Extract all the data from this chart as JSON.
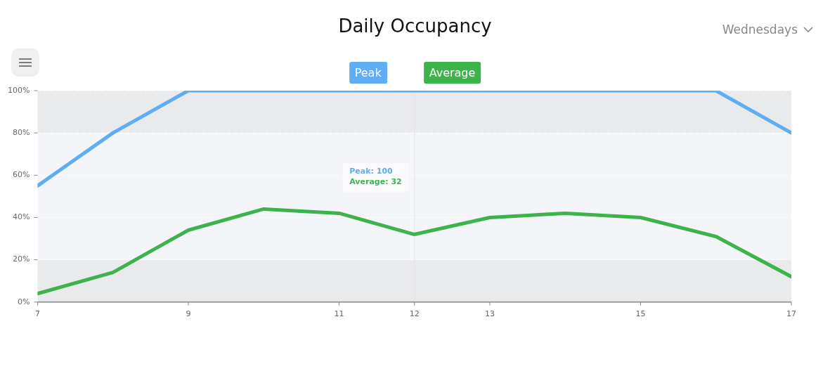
{
  "chart_data": {
    "type": "line",
    "title": "Daily Occupancy",
    "subtitle": "Wednesdays",
    "x": [
      7,
      8,
      9,
      10,
      11,
      12,
      13,
      14,
      15,
      16,
      17
    ],
    "series": [
      {
        "name": "Peak",
        "color": "#5eadf5",
        "values": [
          55,
          80,
          100,
          100,
          100,
          100,
          100,
          100,
          100,
          100,
          80
        ]
      },
      {
        "name": "Average",
        "color": "#3cb44b",
        "values": [
          4,
          14,
          34,
          44,
          42,
          32,
          40,
          42,
          40,
          31,
          12
        ]
      }
    ],
    "xlim": [
      7,
      17
    ],
    "xticks": [
      7,
      9,
      11,
      12,
      13,
      15,
      17
    ],
    "ylim": [
      0,
      100
    ],
    "yticks": [
      {
        "value": 0,
        "label": "0%"
      },
      {
        "value": 20,
        "label": "20%"
      },
      {
        "value": 40,
        "label": "40%"
      },
      {
        "value": 60,
        "label": "60%"
      },
      {
        "value": 80,
        "label": "80%"
      },
      {
        "value": 100,
        "label": "100%"
      }
    ],
    "bands": [
      {
        "axis": "y",
        "from": 0,
        "to": 20,
        "color": "#e9eaec"
      },
      {
        "axis": "y",
        "from": 20,
        "to": 80,
        "color": "#f4f5f9"
      },
      {
        "axis": "y",
        "from": 80,
        "to": 100,
        "color": "#e9eaec"
      }
    ],
    "ref_lines": [
      {
        "axis": "x",
        "value": 12,
        "color": "#e4e4e4"
      }
    ],
    "annotations": [
      "Peak: 100",
      "Average: 32"
    ],
    "grid": "y",
    "legend": "top",
    "marker": "none",
    "line_style": "solid"
  }
}
